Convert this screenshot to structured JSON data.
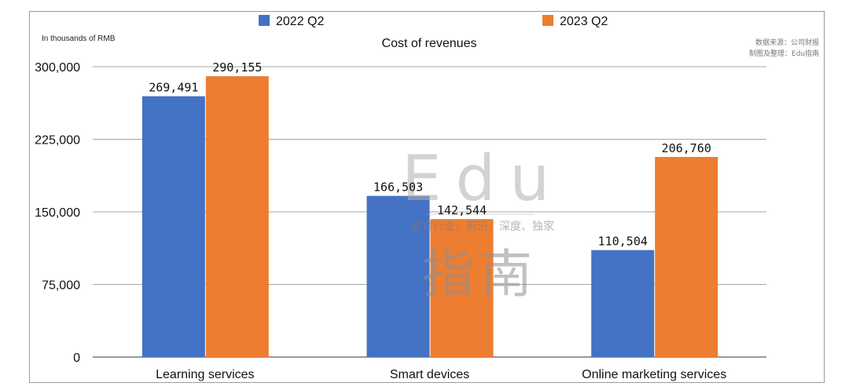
{
  "unit_note": "In thousands of RMB",
  "source": {
    "line1": "数据来源：公司财报",
    "line2": "制图及整理：Edu指南"
  },
  "watermark": {
    "top": "Edu",
    "tagline": "教育行业，前沿、深度、独家",
    "bottom": "指南"
  },
  "colors": {
    "series_2022": "#4472c4",
    "series_2023": "#ed7d31",
    "grid": "#a6a6a6",
    "text": "#111111"
  },
  "chart_data": {
    "type": "bar",
    "title": "Cost of revenues",
    "categories": [
      "Learning services",
      "Smart devices",
      "Online marketing services"
    ],
    "series": [
      {
        "name": "2022 Q2",
        "values": [
          269491,
          166503,
          110504
        ],
        "labels": [
          "269,491",
          "166,503",
          "110,504"
        ]
      },
      {
        "name": "2023 Q2",
        "values": [
          290155,
          142544,
          206760
        ],
        "labels": [
          "290,155",
          "142,544",
          "206,760"
        ]
      }
    ],
    "ylim": [
      0,
      300000
    ],
    "yticks": [
      0,
      75000,
      150000,
      225000,
      300000
    ],
    "ytick_labels": [
      "0",
      "75,000",
      "150,000",
      "225,000",
      "300,000"
    ],
    "grid": true,
    "legend_position": "top-center"
  }
}
